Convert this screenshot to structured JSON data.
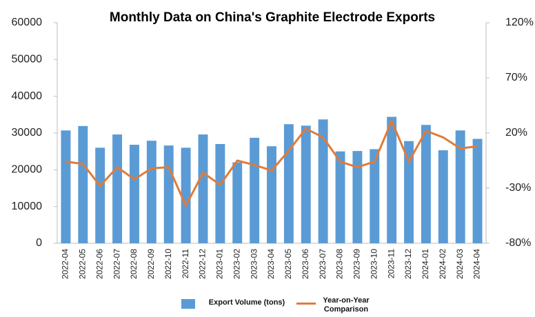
{
  "chart_data": {
    "type": "bar_line",
    "title": "Monthly Data on China's Graphite Electrode Exports",
    "categories": [
      "2022-04",
      "2022-05",
      "2022-06",
      "2022-07",
      "2022-08",
      "2022-09",
      "2022-10",
      "2022-11",
      "2022-12",
      "2023-01",
      "2023-02",
      "2023-03",
      "2023-04",
      "2023-05",
      "2023-06",
      "2023-07",
      "2023-08",
      "2023-09",
      "2023-10",
      "2023-11",
      "2023-12",
      "2024-01",
      "2024-02",
      "2024-03",
      "2024-04"
    ],
    "series": [
      {
        "name": "Export Volume (tons)",
        "color": "#5b9bd5",
        "type": "bar",
        "values": [
          30700,
          31900,
          26000,
          29600,
          26800,
          27900,
          26600,
          26000,
          29600,
          27000,
          22000,
          28700,
          26400,
          32400,
          32000,
          33700,
          25000,
          25100,
          25600,
          34400,
          27800,
          32200,
          25300,
          30700,
          28400
        ]
      },
      {
        "name": "Year-on-Year Comparison",
        "color": "#e07b39",
        "type": "line",
        "axis": "y2",
        "values": [
          -6,
          -8,
          -28,
          -11,
          -22,
          -12,
          -11,
          -46,
          -16,
          -27,
          -5,
          -9,
          -14,
          4,
          24,
          16,
          -6,
          -11,
          -6,
          31,
          -6,
          22,
          16,
          6,
          8
        ]
      }
    ],
    "ylim": [
      0,
      60000
    ],
    "yticks": [
      0,
      10000,
      20000,
      30000,
      40000,
      50000,
      60000
    ],
    "y2lim": [
      -80,
      120
    ],
    "y2ticks": [
      {
        "value": -80,
        "label": "-80%"
      },
      {
        "value": -30,
        "label": "-30%"
      },
      {
        "value": 20,
        "label": "20%"
      },
      {
        "value": 70,
        "label": "70%"
      },
      {
        "value": 120,
        "label": "120%"
      }
    ]
  }
}
